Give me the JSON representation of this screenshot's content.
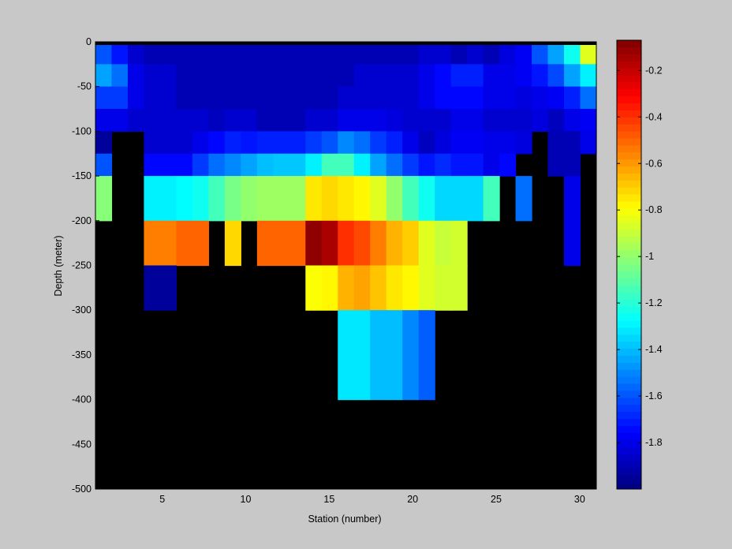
{
  "chart_data": {
    "type": "heatmap",
    "xlabel": "Station (number)",
    "ylabel": "Depth (meter)",
    "xlim": [
      1,
      31
    ],
    "ylim": [
      -500,
      0
    ],
    "x_ticks": [
      5,
      10,
      15,
      20,
      25,
      30
    ],
    "y_ticks": [
      0,
      -50,
      -100,
      -150,
      -200,
      -250,
      -300,
      -350,
      -400,
      -450,
      -500
    ],
    "colorbar": {
      "colormap": "jet",
      "range": [
        -2.0,
        -0.07
      ],
      "ticks": [
        -0.2,
        -0.4,
        -0.6,
        -0.8,
        -1,
        -1.2,
        -1.4,
        -1.6,
        -1.8
      ]
    },
    "no_data_color": "#000000",
    "background_color": "#c8c8c8",
    "depth_bins": [
      0,
      -25,
      -50,
      -75,
      -100,
      -125,
      -150,
      -200,
      -250,
      -300,
      -350,
      -400
    ],
    "values": [
      [
        -1.6,
        -1.72,
        -1.85,
        -1.9,
        -1.9,
        -1.9,
        -1.9,
        -1.9,
        -1.9,
        -1.9,
        -1.9,
        -1.9,
        -1.9,
        -1.9,
        -1.9,
        -1.9,
        -1.9,
        -1.9,
        -1.9,
        -1.9,
        -1.85,
        -1.85,
        -1.9,
        -1.85,
        -1.9,
        -1.82,
        -1.78,
        -1.6,
        -1.45,
        -1.25,
        -0.85
      ],
      [
        -1.45,
        -1.55,
        -1.8,
        -1.85,
        -1.85,
        -1.9,
        -1.9,
        -1.9,
        -1.9,
        -1.9,
        -1.9,
        -1.9,
        -1.9,
        -1.9,
        -1.9,
        -1.9,
        -1.85,
        -1.85,
        -1.85,
        -1.85,
        -1.8,
        -1.75,
        -1.7,
        -1.7,
        -1.8,
        -1.8,
        -1.78,
        -1.72,
        -1.62,
        -1.45,
        -1.3
      ],
      [
        -1.65,
        -1.65,
        -1.8,
        -1.85,
        -1.85,
        -1.9,
        -1.9,
        -1.9,
        -1.9,
        -1.9,
        -1.9,
        -1.9,
        -1.9,
        -1.9,
        -1.9,
        -1.85,
        -1.85,
        -1.85,
        -1.85,
        -1.85,
        -1.8,
        -1.75,
        -1.75,
        -1.75,
        -1.8,
        -1.8,
        -1.82,
        -1.8,
        -1.78,
        -1.7,
        -1.55
      ],
      [
        -1.8,
        -1.8,
        -1.85,
        -1.85,
        -1.85,
        -1.85,
        -1.85,
        -1.88,
        -1.85,
        -1.85,
        -1.9,
        -1.9,
        -1.9,
        -1.85,
        -1.85,
        -1.8,
        -1.8,
        -1.8,
        -1.82,
        -1.85,
        -1.85,
        -1.85,
        -1.8,
        -1.8,
        -1.85,
        -1.85,
        -1.85,
        -1.82,
        -1.88,
        -1.8,
        -1.78
      ],
      [
        -1.95,
        null,
        null,
        -1.85,
        -1.85,
        -1.85,
        -1.8,
        -1.75,
        -1.7,
        -1.72,
        -1.7,
        -1.7,
        -1.7,
        -1.65,
        -1.6,
        -1.5,
        -1.55,
        -1.65,
        -1.7,
        -1.8,
        -1.88,
        -1.82,
        -1.78,
        -1.78,
        -1.8,
        -1.8,
        -1.82,
        null,
        -1.9,
        -1.9,
        -1.8
      ],
      [
        -1.6,
        null,
        null,
        -1.75,
        -1.75,
        -1.75,
        -1.65,
        -1.55,
        -1.5,
        -1.45,
        -1.4,
        -1.38,
        -1.38,
        -1.3,
        -1.15,
        -1.15,
        -1.3,
        -1.45,
        -1.55,
        -1.65,
        -1.72,
        -1.68,
        -1.72,
        -1.72,
        -1.8,
        -1.75,
        null,
        null,
        -1.9,
        -1.9,
        null
      ],
      [
        -1.02,
        null,
        null,
        -1.3,
        -1.3,
        -1.28,
        -1.25,
        -1.15,
        -1.05,
        -1.0,
        -0.98,
        -0.98,
        -0.98,
        -0.75,
        -0.72,
        -0.75,
        -0.78,
        -0.85,
        -1.0,
        -1.15,
        -1.25,
        -1.35,
        -1.35,
        -1.35,
        -1.15,
        null,
        -1.55,
        null,
        null,
        -1.8,
        null
      ],
      [
        null,
        null,
        null,
        -0.55,
        -0.55,
        -0.5,
        -0.5,
        null,
        -0.72,
        null,
        -0.5,
        -0.5,
        -0.5,
        -0.1,
        -0.15,
        -0.4,
        -0.45,
        -0.55,
        -0.65,
        -0.7,
        -0.85,
        -0.9,
        -0.88,
        null,
        null,
        null,
        null,
        null,
        null,
        -1.8,
        null
      ],
      [
        null,
        null,
        null,
        -1.95,
        -1.95,
        null,
        null,
        null,
        null,
        null,
        null,
        null,
        null,
        -0.8,
        -0.78,
        -0.65,
        -0.62,
        -0.68,
        -0.75,
        -0.78,
        -0.85,
        -0.88,
        -0.88,
        null,
        null,
        null,
        null,
        null,
        null,
        null,
        null
      ],
      [
        null,
        null,
        null,
        null,
        null,
        null,
        null,
        null,
        null,
        null,
        null,
        null,
        null,
        null,
        null,
        -1.32,
        -1.32,
        -1.4,
        -1.4,
        -1.5,
        -1.58,
        null,
        null,
        null,
        null,
        null,
        null,
        null,
        null,
        null,
        null
      ],
      [
        null,
        null,
        null,
        null,
        null,
        null,
        null,
        null,
        null,
        null,
        null,
        null,
        null,
        null,
        null,
        -1.32,
        -1.32,
        -1.4,
        -1.4,
        -1.5,
        -1.58,
        null,
        null,
        null,
        null,
        null,
        null,
        null,
        null,
        null,
        null
      ]
    ]
  }
}
